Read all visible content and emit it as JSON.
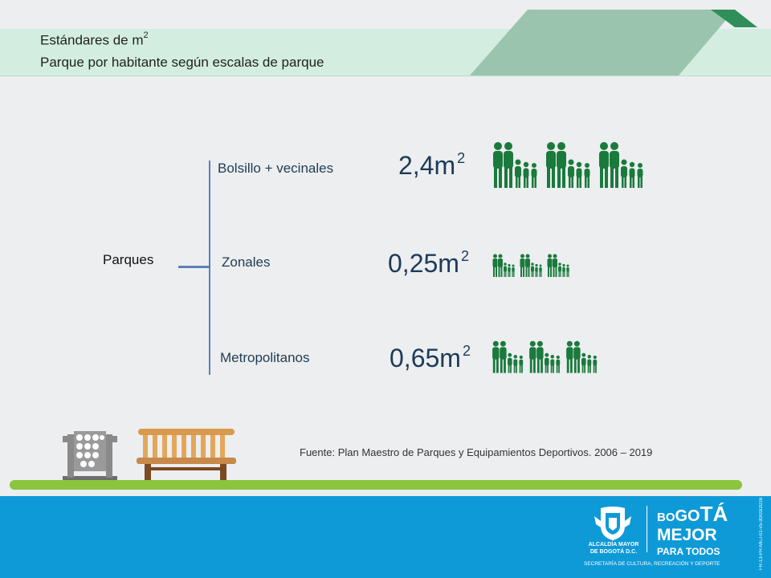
{
  "header": {
    "title_line1": "Estándares de m",
    "title_line1_sup": "2",
    "title_line2": "Parque por habitante según escalas de parque"
  },
  "tree": {
    "root_label": "Parques",
    "branches": [
      {
        "label": "Bolsillo + vecinales",
        "value": "2,4m",
        "unit_sup": "2"
      },
      {
        "label": "Zonales",
        "value": "0,25m",
        "unit_sup": "2"
      },
      {
        "label": "Metropolitanos",
        "value": "0,65m",
        "unit_sup": "2"
      }
    ]
  },
  "source": "Fuente: Plan Maestro de Parques y Equipamientos Deportivos.  2006 – 2019",
  "footer": {
    "alcaldia_line1": "ALCALDÍA MAYOR",
    "alcaldia_line2": "DE BOGOTÁ D.C.",
    "bogota_bo": "BO",
    "bogota_go": "GO",
    "bogota_ta": "TÁ",
    "mejor": "MEJOR",
    "para_todos": "PARA TODOS",
    "secretaria": "SECRETARÍA DE CULTURA, RECREACIÓN Y DEPORTE",
    "doc_code": "FR-13-PR-MEJ-01-v5-30/03/2016"
  },
  "colors": {
    "title_band": "#d3eee0",
    "family_icon": "#1a7a3c",
    "tree_line": "#5a80b8",
    "grass": "#8bc53f",
    "footer": "#0e9ad7"
  },
  "icons": [
    "family-icon",
    "bench-icon",
    "fountain-icon",
    "coat-of-arms-icon",
    "roof-icon"
  ]
}
